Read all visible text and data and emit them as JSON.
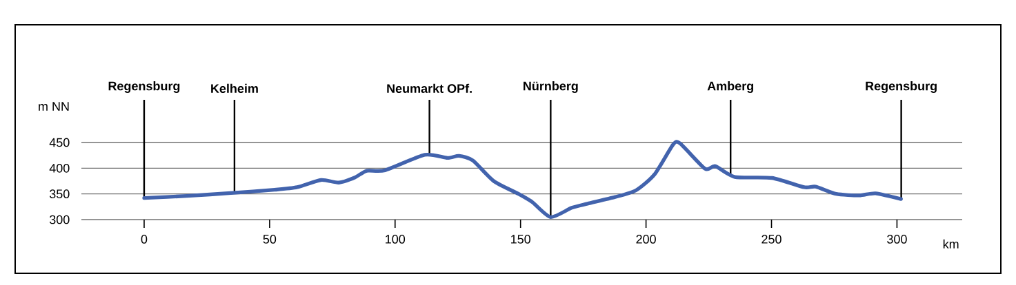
{
  "chart_data": {
    "type": "line",
    "xlabel": "km",
    "ylabel": "m NN",
    "x": [
      0,
      17,
      35.5,
      52,
      61,
      70.5,
      77.6,
      84,
      88.7,
      96,
      111.8,
      120.9,
      125.5,
      131,
      139.3,
      149.2,
      154.7,
      162,
      170.4,
      176.7,
      187.7,
      196,
      203.4,
      210.8,
      213.6,
      223.5,
      227.6,
      235.4,
      250.2,
      263,
      267.6,
      275.8,
      285,
      291.5,
      301.6
    ],
    "series": [
      {
        "color": "#4263ad",
        "values": [
          342,
          346,
          352,
          358,
          363,
          377,
          372,
          382,
          395,
          396,
          426,
          420,
          424,
          415,
          375,
          350,
          334,
          305,
          323,
          331,
          344,
          357,
          388,
          446,
          448,
          399,
          404,
          383,
          381,
          363,
          364,
          350,
          347,
          351,
          340
        ]
      }
    ],
    "xlim": [
      -25,
      326
    ],
    "ylim": [
      300,
      533
    ],
    "xticks": [
      0,
      50,
      100,
      150,
      200,
      250,
      300
    ],
    "yticks": [
      300,
      350,
      400,
      450
    ],
    "grid": "y",
    "line_style": "solid",
    "marker": "none",
    "ref_lines": [
      {
        "axis": "x",
        "value": 0,
        "label": "Regensburg"
      },
      {
        "axis": "x",
        "value": 36,
        "label": "Kelheim"
      },
      {
        "axis": "x",
        "value": 113.7,
        "label": "Neumarkt OPf."
      },
      {
        "axis": "x",
        "value": 162,
        "label": "Nürnberg"
      },
      {
        "axis": "x",
        "value": 233.7,
        "label": "Amberg"
      },
      {
        "axis": "x",
        "value": 301.7,
        "label": "Regensburg"
      }
    ]
  }
}
